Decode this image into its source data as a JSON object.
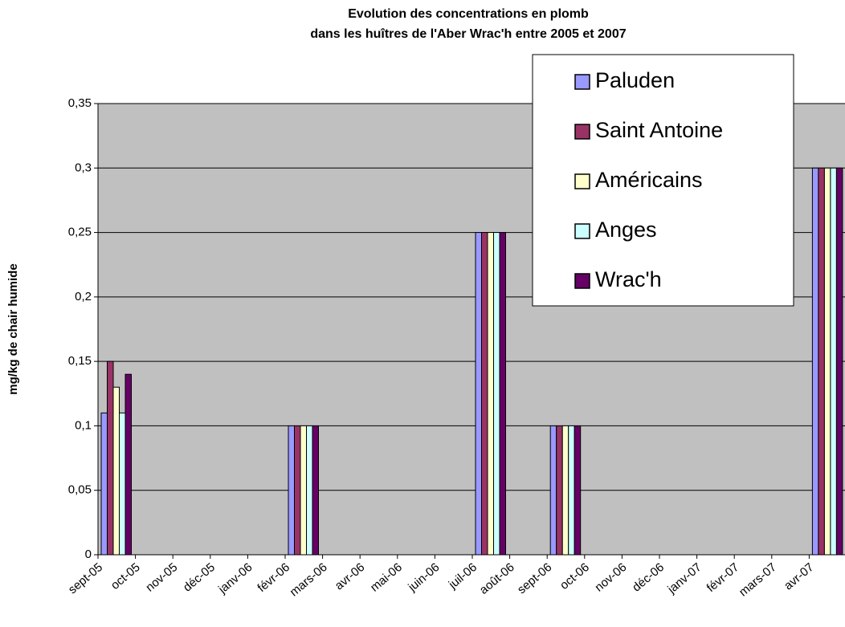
{
  "chart_data": {
    "type": "bar",
    "title": "Evolution des concentrations en plomb",
    "subtitle": "dans les huîtres de l'Aber Wrac'h entre 2005 et 2007",
    "y_label": "mg/kg de chair humide",
    "categories": [
      "sept-05",
      "oct-05",
      "nov-05",
      "déc-05",
      "janv-06",
      "févr-06",
      "mars-06",
      "avr-06",
      "mai-06",
      "juin-06",
      "juil-06",
      "août-06",
      "sept-06",
      "oct-06",
      "nov-06",
      "déc-06",
      "janv-07",
      "févr-07",
      "mars-07",
      "avr-07"
    ],
    "series": [
      {
        "name": "Paluden",
        "color": "#9999ff",
        "values": [
          0.11,
          null,
          null,
          null,
          null,
          0.1,
          null,
          null,
          null,
          null,
          0.25,
          null,
          0.1,
          null,
          null,
          null,
          null,
          null,
          null,
          0.3
        ]
      },
      {
        "name": "Saint Antoine",
        "color": "#993366",
        "values": [
          0.15,
          null,
          null,
          null,
          null,
          0.1,
          null,
          null,
          null,
          null,
          0.25,
          null,
          0.1,
          null,
          null,
          null,
          null,
          null,
          null,
          0.3
        ]
      },
      {
        "name": "Américains",
        "color": "#ffffcc",
        "values": [
          0.13,
          null,
          null,
          null,
          null,
          0.1,
          null,
          null,
          null,
          null,
          0.25,
          null,
          0.1,
          null,
          null,
          null,
          null,
          null,
          null,
          0.3
        ]
      },
      {
        "name": "Anges",
        "color": "#ccffff",
        "values": [
          0.11,
          null,
          null,
          null,
          null,
          0.1,
          null,
          null,
          null,
          null,
          0.25,
          null,
          0.1,
          null,
          null,
          null,
          null,
          null,
          null,
          0.3
        ]
      },
      {
        "name": "Wrac'h",
        "color": "#660066",
        "values": [
          0.14,
          null,
          null,
          null,
          null,
          0.1,
          null,
          null,
          null,
          null,
          0.25,
          null,
          0.1,
          null,
          null,
          null,
          null,
          null,
          null,
          0.3
        ]
      }
    ],
    "ylim": [
      0,
      0.35
    ],
    "yticks": [
      0,
      {
        "value": 0.05,
        "label": "0,05"
      },
      {
        "value": 0.1,
        "label": "0,1"
      },
      {
        "value": 0.15,
        "label": "0,15"
      },
      {
        "value": 0.2,
        "label": "0,2"
      },
      {
        "value": 0.25,
        "label": "0,25"
      },
      {
        "value": 0.3,
        "label": "0,3"
      },
      {
        "value": 0.35,
        "label": "0,35"
      }
    ],
    "grid": true,
    "legend": "top-right"
  }
}
